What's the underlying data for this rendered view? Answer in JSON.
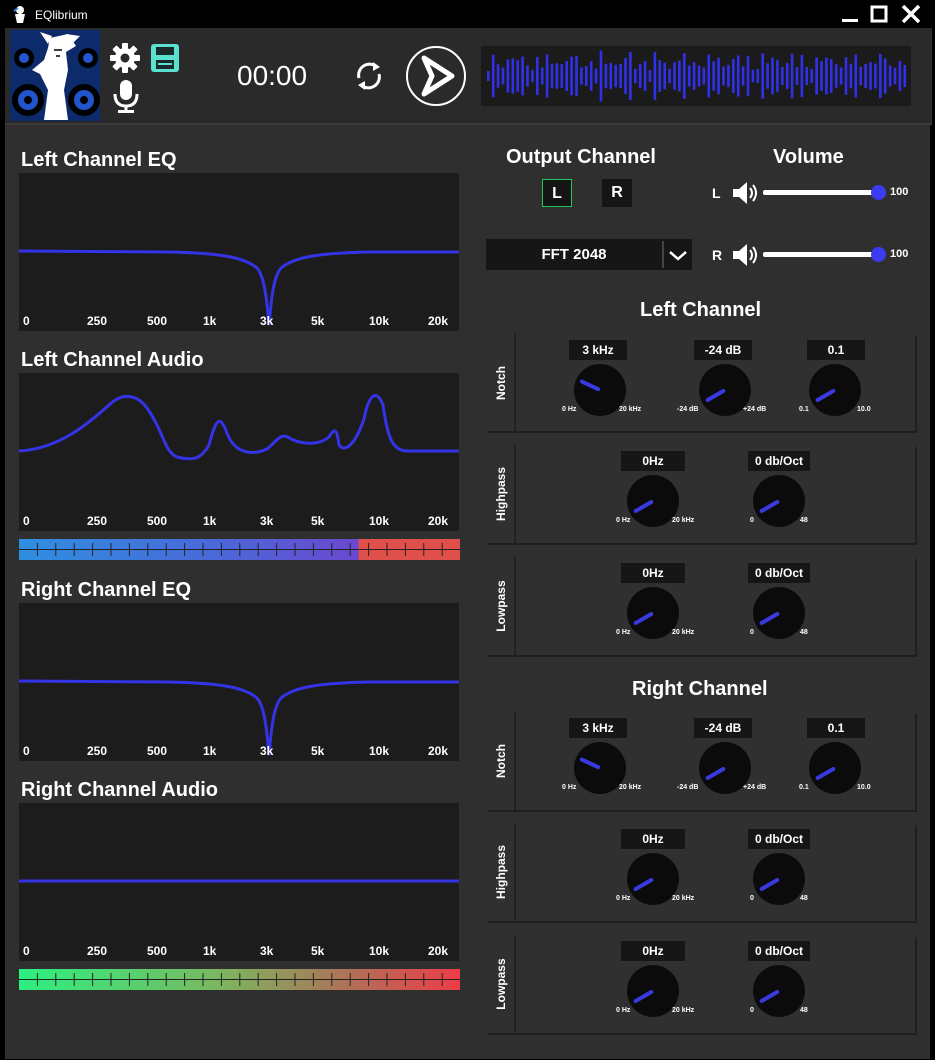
{
  "window": {
    "title": "EQlibrium"
  },
  "toolbar": {
    "time": "00:00"
  },
  "eq_axis_ticks": [
    "0",
    "250",
    "500",
    "1k",
    "3k",
    "5k",
    "10k",
    "20k"
  ],
  "left_eq": {
    "title": "Left Channel EQ"
  },
  "left_audio": {
    "title": "Left Channel Audio",
    "meter_level": 0.77
  },
  "right_eq": {
    "title": "Right Channel EQ"
  },
  "right_audio": {
    "title": "Right Channel Audio",
    "meter_level": 1.0
  },
  "output": {
    "title": "Output Channel",
    "left_btn": "L",
    "right_btn": "R",
    "selected": "L",
    "fft": "FFT 2048"
  },
  "volume": {
    "title": "Volume",
    "left_label": "L",
    "right_label": "R",
    "left_value": "100",
    "right_value": "100"
  },
  "left_channel": {
    "title": "Left Channel",
    "notch": {
      "label": "Notch",
      "freq": "3 kHz",
      "freq_min": "0 Hz",
      "freq_max": "20 kHz",
      "gain": "-24 dB",
      "gain_min": "-24 dB",
      "gain_max": "+24 dB",
      "q": "0.1",
      "q_min": "0.1",
      "q_max": "10.0"
    },
    "highpass": {
      "label": "Highpass",
      "freq": "0Hz",
      "freq_min": "0 Hz",
      "freq_max": "20 kHz",
      "slope": "0 db/Oct",
      "slope_min": "0",
      "slope_max": "48"
    },
    "lowpass": {
      "label": "Lowpass",
      "freq": "0Hz",
      "freq_min": "0 Hz",
      "freq_max": "20 kHz",
      "slope": "0 db/Oct",
      "slope_min": "0",
      "slope_max": "48"
    }
  },
  "right_channel": {
    "title": "Right Channel",
    "notch": {
      "label": "Notch",
      "freq": "3 kHz",
      "freq_min": "0 Hz",
      "freq_max": "20 kHz",
      "gain": "-24 dB",
      "gain_min": "-24 dB",
      "gain_max": "+24 dB",
      "q": "0.1",
      "q_min": "0.1",
      "q_max": "10.0"
    },
    "highpass": {
      "label": "Highpass",
      "freq": "0Hz",
      "freq_min": "0 Hz",
      "freq_max": "20 kHz",
      "slope": "0 db/Oct",
      "slope_min": "0",
      "slope_max": "48"
    },
    "lowpass": {
      "label": "Lowpass",
      "freq": "0Hz",
      "freq_min": "0 Hz",
      "freq_max": "20 kHz",
      "slope": "0 db/Oct",
      "slope_min": "0",
      "slope_max": "48"
    }
  },
  "colors": {
    "accent": "#3333ee",
    "panel": "#1c1c1c",
    "background": "#2f2f2f",
    "selected_border": "#22c55e"
  }
}
